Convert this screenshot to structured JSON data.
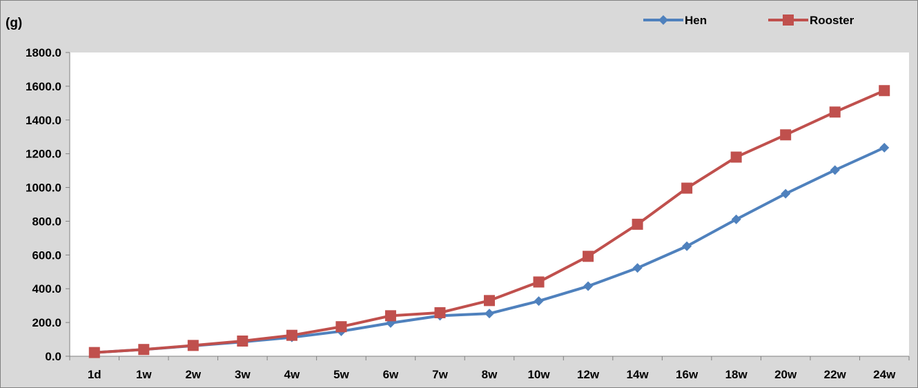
{
  "chart_data": {
    "type": "line",
    "y_unit_label": "(g)",
    "categories": [
      "1d",
      "1w",
      "2w",
      "3w",
      "4w",
      "5w",
      "6w",
      "7w",
      "8w",
      "10w",
      "12w",
      "14w",
      "16w",
      "18w",
      "20w",
      "22w",
      "24w"
    ],
    "series": [
      {
        "name": "Hen",
        "color": "#4f81bd",
        "marker": "diamond",
        "values": [
          22,
          40,
          62,
          85,
          112,
          148,
          197,
          240,
          253,
          327,
          415,
          523,
          652,
          811,
          963,
          1103,
          1236
        ]
      },
      {
        "name": "Rooster",
        "color": "#c0504d",
        "marker": "square",
        "values": [
          22,
          40,
          64,
          90,
          124,
          175,
          240,
          258,
          330,
          440,
          592,
          782,
          996,
          1180,
          1312,
          1447,
          1574
        ]
      }
    ],
    "ylim": [
      0,
      1800
    ],
    "yticks": [
      "0.0",
      "200.0",
      "400.0",
      "600.0",
      "800.0",
      "1000.0",
      "1200.0",
      "1400.0",
      "1600.0",
      "1800.0"
    ],
    "grid": false,
    "legend_position": "top-right"
  }
}
